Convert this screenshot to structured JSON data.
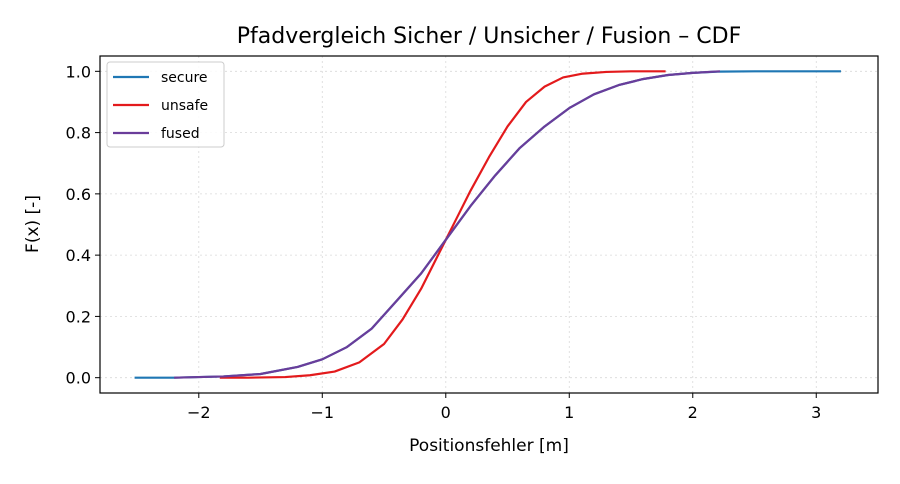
{
  "chart_data": {
    "type": "line",
    "title": "Pfadvergleich Sicher / Unsicher / Fusion – CDF",
    "xlabel": "Positionsfehler [m]",
    "ylabel": "F(x) [-]",
    "xlim": [
      -2.8,
      3.5
    ],
    "ylim": [
      -0.05,
      1.05
    ],
    "xticks": [
      -2,
      -1,
      0,
      1,
      2,
      3
    ],
    "xtick_labels": [
      "−2",
      "−1",
      "0",
      "1",
      "2",
      "3"
    ],
    "yticks": [
      0.0,
      0.2,
      0.4,
      0.6,
      0.8,
      1.0
    ],
    "ytick_labels": [
      "0.0",
      "0.2",
      "0.4",
      "0.6",
      "0.8",
      "1.0"
    ],
    "grid": true,
    "legend_position": "upper-left",
    "series": [
      {
        "name": "secure",
        "color": "#1f77b4",
        "points": [
          [
            -2.52,
            0.0
          ],
          [
            -2.2,
            0.0
          ],
          [
            -1.8,
            0.004
          ],
          [
            -1.5,
            0.012
          ],
          [
            -1.2,
            0.035
          ],
          [
            -1.0,
            0.06
          ],
          [
            -0.8,
            0.1
          ],
          [
            -0.6,
            0.16
          ],
          [
            -0.4,
            0.25
          ],
          [
            -0.2,
            0.34
          ],
          [
            0.0,
            0.45
          ],
          [
            0.2,
            0.56
          ],
          [
            0.4,
            0.66
          ],
          [
            0.6,
            0.75
          ],
          [
            0.8,
            0.82
          ],
          [
            1.0,
            0.88
          ],
          [
            1.2,
            0.925
          ],
          [
            1.4,
            0.955
          ],
          [
            1.6,
            0.975
          ],
          [
            1.8,
            0.988
          ],
          [
            2.0,
            0.995
          ],
          [
            2.2,
            0.999
          ],
          [
            2.5,
            1.0
          ],
          [
            3.0,
            1.0
          ],
          [
            3.2,
            1.0
          ]
        ]
      },
      {
        "name": "unsafe",
        "color": "#e31a1c",
        "points": [
          [
            -1.83,
            0.0
          ],
          [
            -1.6,
            0.0
          ],
          [
            -1.3,
            0.002
          ],
          [
            -1.1,
            0.008
          ],
          [
            -0.9,
            0.02
          ],
          [
            -0.7,
            0.05
          ],
          [
            -0.5,
            0.11
          ],
          [
            -0.35,
            0.19
          ],
          [
            -0.2,
            0.29
          ],
          [
            -0.1,
            0.37
          ],
          [
            0.0,
            0.45
          ],
          [
            0.1,
            0.53
          ],
          [
            0.2,
            0.61
          ],
          [
            0.35,
            0.72
          ],
          [
            0.5,
            0.82
          ],
          [
            0.65,
            0.9
          ],
          [
            0.8,
            0.95
          ],
          [
            0.95,
            0.98
          ],
          [
            1.1,
            0.992
          ],
          [
            1.3,
            0.998
          ],
          [
            1.5,
            1.0
          ],
          [
            1.78,
            1.0
          ]
        ]
      },
      {
        "name": "fused",
        "color": "#6a3d9a",
        "points": [
          [
            -2.2,
            0.0
          ],
          [
            -1.8,
            0.004
          ],
          [
            -1.5,
            0.012
          ],
          [
            -1.2,
            0.035
          ],
          [
            -1.0,
            0.06
          ],
          [
            -0.8,
            0.1
          ],
          [
            -0.6,
            0.16
          ],
          [
            -0.4,
            0.25
          ],
          [
            -0.2,
            0.34
          ],
          [
            0.0,
            0.45
          ],
          [
            0.2,
            0.56
          ],
          [
            0.4,
            0.66
          ],
          [
            0.6,
            0.75
          ],
          [
            0.8,
            0.82
          ],
          [
            1.0,
            0.88
          ],
          [
            1.2,
            0.925
          ],
          [
            1.4,
            0.955
          ],
          [
            1.6,
            0.975
          ],
          [
            1.8,
            0.988
          ],
          [
            2.0,
            0.995
          ],
          [
            2.22,
            1.0
          ]
        ]
      }
    ]
  }
}
